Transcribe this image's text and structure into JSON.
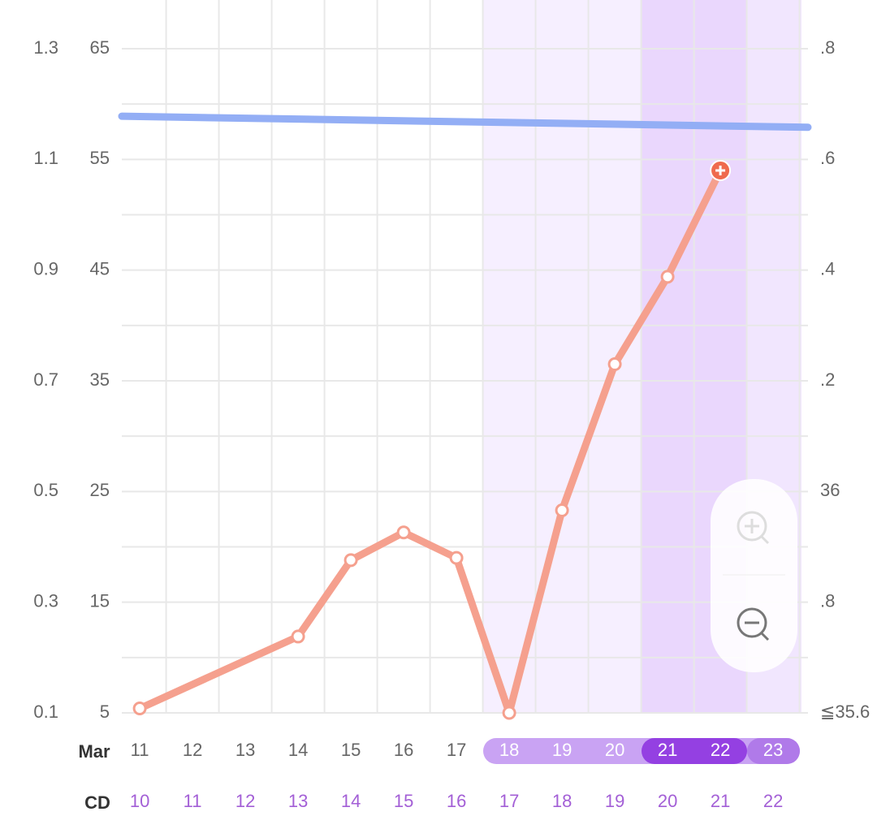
{
  "chart_data": {
    "type": "line",
    "month_label": "Mar",
    "cycle_label": "CD",
    "categories": [
      "11",
      "12",
      "13",
      "14",
      "15",
      "16",
      "17",
      "18",
      "19",
      "20",
      "21",
      "22",
      "23"
    ],
    "cycle_days": [
      "10",
      "11",
      "12",
      "13",
      "14",
      "15",
      "16",
      "17",
      "18",
      "19",
      "20",
      "21",
      "22"
    ],
    "xlim": [
      10.66,
      23.66
    ],
    "ylim": [
      5,
      65
    ],
    "yticks": [
      5,
      15,
      25,
      35,
      45,
      55,
      65
    ],
    "y2lim": [
      0.1,
      1.3
    ],
    "y2ticks": [
      0.1,
      0.3,
      0.5,
      0.7,
      0.9,
      1.1,
      1.3
    ],
    "y3lim": [
      35.6,
      36.8
    ],
    "y3ticks": [
      {
        "value": 35.6,
        "label": "≦35.6"
      },
      {
        "value": 35.8,
        "label": ".8"
      },
      36,
      {
        "value": 36.2,
        "label": ".2"
      },
      {
        "value": 36.4,
        "label": ".4"
      },
      {
        "value": 36.6,
        "label": ".6"
      },
      {
        "value": 36.8,
        "label": ".8"
      }
    ],
    "grid": true,
    "series": [
      {
        "color": "#93aef5",
        "x": [
          10.66,
          23.66
        ],
        "values": [
          58.9,
          57.9
        ]
      },
      {
        "color": "#f5a08e",
        "x": [
          11,
          14,
          15,
          16,
          17,
          18,
          19,
          20,
          21,
          22
        ],
        "values": [
          5.4,
          11.9,
          18.8,
          21.3,
          19.0,
          5,
          23.3,
          36.5,
          44.4,
          54.0
        ]
      }
    ]
  }
}
